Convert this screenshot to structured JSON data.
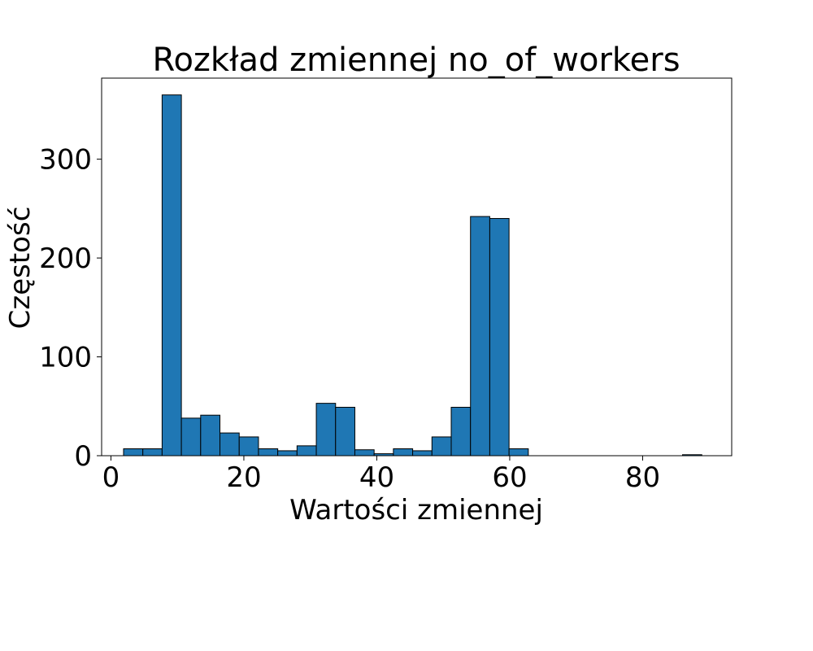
{
  "chart_data": {
    "type": "bar",
    "title": "Rozkład zmiennej no_of_workers",
    "xlabel": "Wartości zmiennej",
    "ylabel": "Częstość",
    "xlim": [
      -1.4,
      93.4
    ],
    "ylim": [
      0,
      382
    ],
    "x_ticks": [
      0,
      20,
      40,
      60,
      80
    ],
    "y_ticks": [
      0,
      100,
      200,
      300
    ],
    "grid": false,
    "legend": "none",
    "bar_color": "#1f77b4",
    "edge_color": "#000000",
    "bins": [
      {
        "x0": 1.9,
        "x1": 4.8,
        "value": 7
      },
      {
        "x0": 4.8,
        "x1": 7.7,
        "value": 7
      },
      {
        "x0": 7.7,
        "x1": 10.6,
        "value": 365
      },
      {
        "x0": 10.6,
        "x1": 13.5,
        "value": 38
      },
      {
        "x0": 13.5,
        "x1": 16.4,
        "value": 41
      },
      {
        "x0": 16.4,
        "x1": 19.3,
        "value": 23
      },
      {
        "x0": 19.3,
        "x1": 22.2,
        "value": 19
      },
      {
        "x0": 22.2,
        "x1": 25.1,
        "value": 7
      },
      {
        "x0": 25.1,
        "x1": 28.0,
        "value": 5
      },
      {
        "x0": 28.0,
        "x1": 30.9,
        "value": 10
      },
      {
        "x0": 30.9,
        "x1": 33.8,
        "value": 53
      },
      {
        "x0": 33.8,
        "x1": 36.7,
        "value": 49
      },
      {
        "x0": 36.7,
        "x1": 39.6,
        "value": 6
      },
      {
        "x0": 39.6,
        "x1": 42.5,
        "value": 2
      },
      {
        "x0": 42.5,
        "x1": 45.4,
        "value": 7
      },
      {
        "x0": 45.4,
        "x1": 48.3,
        "value": 5
      },
      {
        "x0": 48.3,
        "x1": 51.2,
        "value": 19
      },
      {
        "x0": 51.2,
        "x1": 54.1,
        "value": 49
      },
      {
        "x0": 54.1,
        "x1": 57.0,
        "value": 242
      },
      {
        "x0": 57.0,
        "x1": 59.9,
        "value": 240
      },
      {
        "x0": 59.9,
        "x1": 62.8,
        "value": 7
      },
      {
        "x0": 62.8,
        "x1": 65.7,
        "value": 0
      },
      {
        "x0": 65.7,
        "x1": 68.6,
        "value": 0
      },
      {
        "x0": 68.6,
        "x1": 71.5,
        "value": 0
      },
      {
        "x0": 71.5,
        "x1": 74.4,
        "value": 0
      },
      {
        "x0": 74.4,
        "x1": 77.3,
        "value": 0
      },
      {
        "x0": 77.3,
        "x1": 80.2,
        "value": 0
      },
      {
        "x0": 80.2,
        "x1": 83.1,
        "value": 0
      },
      {
        "x0": 83.1,
        "x1": 86.0,
        "value": 0
      },
      {
        "x0": 86.0,
        "x1": 88.9,
        "value": 1
      }
    ]
  }
}
